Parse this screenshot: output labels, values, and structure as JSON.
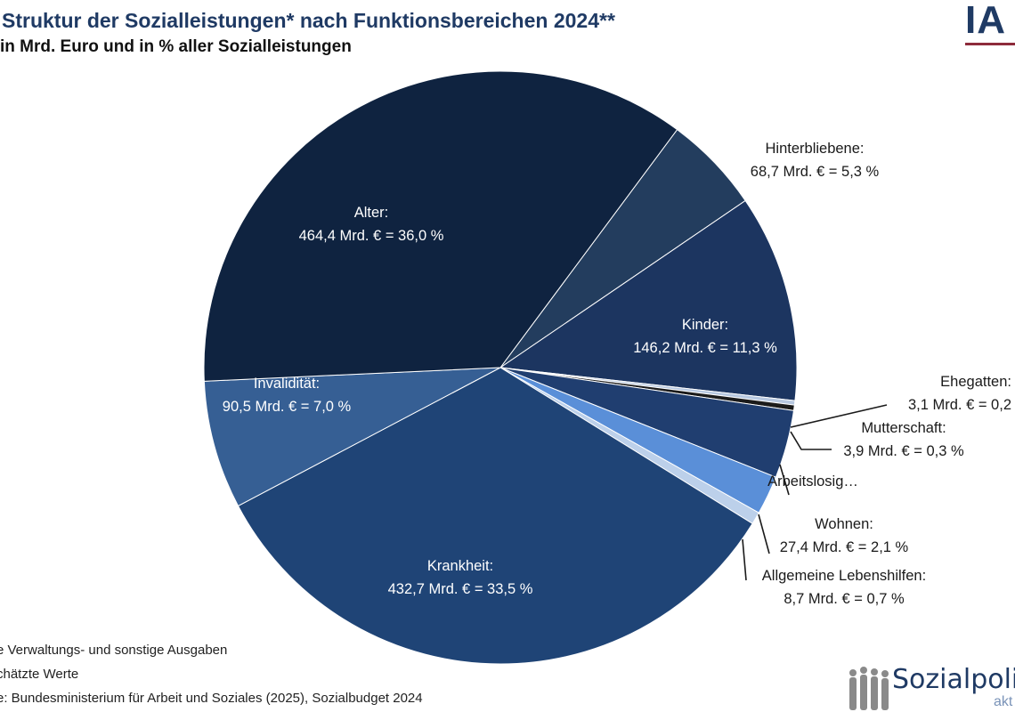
{
  "title": "Struktur der Sozialleistungen* nach Funktionsbereichen 2024**",
  "subtitle": "in Mrd. Euro und in % aller Sozialleistungen",
  "logo_top": "IA",
  "footnotes": [
    "e Verwaltungs- und sonstige Ausgaben",
    "chätzte Werte",
    "e: Bundesministerium für Arbeit und Soziales (2025), Sozialbudget 2024"
  ],
  "logo_bottom": {
    "text": "Sozialpoli",
    "sub": "akt"
  },
  "colors": {
    "Alter": "#0f2340",
    "Hinterbliebene": "#233d5e",
    "Kinder": "#1c3560",
    "Ehegatten": "#b7c8e0",
    "Mutterschaft": "#1b1b1b",
    "Arbeitslosigkeit": "#203e70",
    "Wohnen": "#5a8fd8",
    "Allgemeine Lebenshilfen": "#bcd0ea",
    "Krankheit": "#1f4476",
    "Invaliditaet": "#365f94"
  },
  "chart_data": {
    "type": "pie",
    "title": "Struktur der Sozialleistungen* nach Funktionsbereichen 2024**",
    "subtitle": "in Mrd. Euro und in % aller Sozialleistungen",
    "unit": "Mrd. €",
    "slices": [
      {
        "key": "Hinterbliebene",
        "name": "Hinterbliebene:",
        "value": 68.7,
        "percent": 5.3,
        "label": "68,7 Mrd. € = 5,3 %",
        "label_inside": false
      },
      {
        "key": "Kinder",
        "name": "Kinder:",
        "value": 146.2,
        "percent": 11.3,
        "label": "146,2 Mrd. € = 11,3 %",
        "label_inside": true
      },
      {
        "key": "Ehegatten",
        "name": "Ehegatten:",
        "value": 3.1,
        "percent": 0.2,
        "label": "3,1 Mrd. € = 0,2",
        "label_inside": false
      },
      {
        "key": "Mutterschaft",
        "name": "Mutterschaft:",
        "value": 3.9,
        "percent": 0.3,
        "label": "3,9 Mrd. € = 0,3 %",
        "label_inside": false
      },
      {
        "key": "Arbeitslosigkeit",
        "name": "Arbeitslosig…",
        "value": 48.0,
        "percent": 3.7,
        "label": "",
        "label_inside": false
      },
      {
        "key": "Wohnen",
        "name": "Wohnen:",
        "value": 27.4,
        "percent": 2.1,
        "label": "27,4 Mrd. € = 2,1 %",
        "label_inside": false
      },
      {
        "key": "Allgemeine Lebenshilfen",
        "name": "Allgemeine Lebenshilfen:",
        "value": 8.7,
        "percent": 0.7,
        "label": "8,7 Mrd. € = 0,7 %",
        "label_inside": false
      },
      {
        "key": "Krankheit",
        "name": "Krankheit:",
        "value": 432.7,
        "percent": 33.5,
        "label": "432,7 Mrd. € = 33,5 %",
        "label_inside": true
      },
      {
        "key": "Invaliditaet",
        "name": "Invalidität:",
        "value": 90.5,
        "percent": 7.0,
        "label": "90,5 Mrd. € = 7,0 %",
        "label_inside": true
      },
      {
        "key": "Alter",
        "name": "Alter:",
        "value": 464.4,
        "percent": 36.0,
        "label": "464,4 Mrd. € = 36,0 %",
        "label_inside": true
      }
    ]
  }
}
